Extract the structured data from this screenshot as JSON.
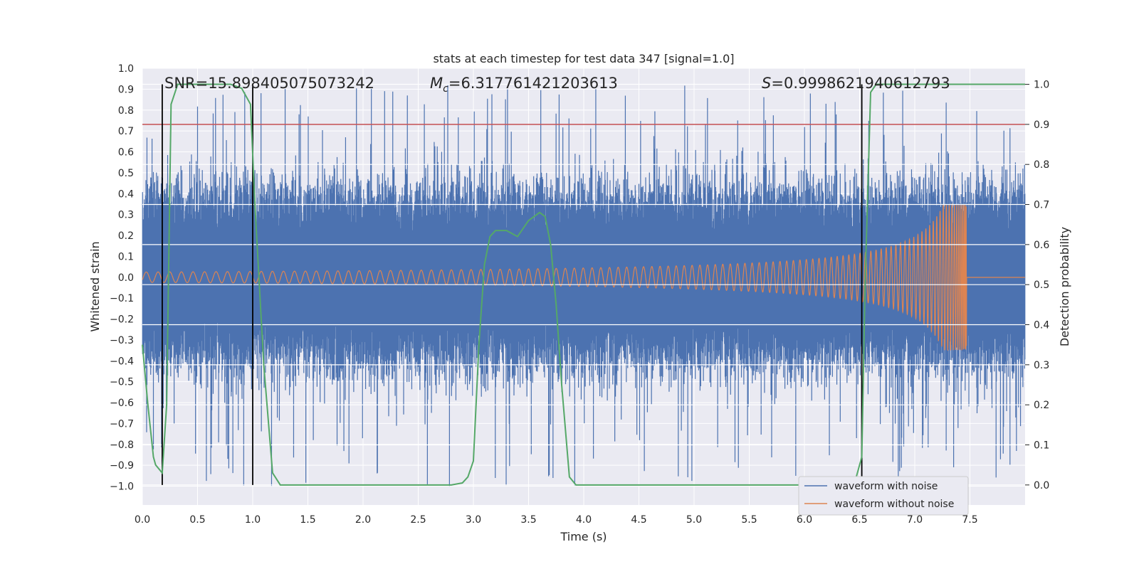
{
  "chart_data": {
    "type": "line",
    "title": "stats at each timestep for test data 347 [signal=1.0]",
    "xlabel": "Time (s)",
    "ylabel_left": "Whitened strain",
    "ylabel_right": "Detection probability",
    "xlim": [
      0.0,
      8.0
    ],
    "ylim_left": [
      -1.09,
      1.0
    ],
    "ylim_right": [
      -0.05,
      1.04
    ],
    "x_ticks": [
      "0.0",
      "0.5",
      "1.0",
      "1.5",
      "2.0",
      "2.5",
      "3.0",
      "3.5",
      "4.0",
      "4.5",
      "5.0",
      "5.5",
      "6.0",
      "6.5",
      "7.0",
      "7.5"
    ],
    "y_left_ticks": [
      "1.0",
      "0.9",
      "0.8",
      "0.7",
      "0.6",
      "0.5",
      "0.4",
      "0.3",
      "0.2",
      "0.1",
      "0.0",
      "−0.1",
      "−0.2",
      "−0.3",
      "−0.4",
      "−0.5",
      "−0.6",
      "−0.7",
      "−0.8",
      "−0.9",
      "−1.0"
    ],
    "y_right_ticks": [
      "1.0",
      "0.9",
      "0.8",
      "0.7",
      "0.6",
      "0.5",
      "0.4",
      "0.3",
      "0.2",
      "0.1",
      "0.0"
    ],
    "annotations": {
      "snr_prefix": "SNR=",
      "snr": "15.898405075073242",
      "mc_symbol": "M",
      "mc_sub": "c",
      "mc": "6.317761421203613",
      "s_symbol": "S",
      "s": "0.9998621940612793"
    },
    "threshold_probability": 0.9,
    "detection_markers_s": [
      0.18,
      1.0,
      6.52
    ],
    "series": [
      {
        "name": "waveform with noise",
        "color": "#4c72b0",
        "axis": "left",
        "description_stats": {
          "typical_amplitude": 0.38,
          "max_peak": 0.92,
          "min_trough": -1.0
        }
      },
      {
        "name": "waveform without noise",
        "color": "#dd8452",
        "axis": "left",
        "chirp_start_amplitude": 0.025,
        "merger_time_s": 7.47,
        "merger_amplitude": 0.35,
        "post_merger_amplitude": 0.005
      },
      {
        "name": "detection probability",
        "color": "#55a868",
        "axis": "right",
        "x": [
          0.0,
          0.05,
          0.1,
          0.12,
          0.18,
          0.22,
          0.26,
          0.32,
          0.5,
          0.8,
          0.9,
          0.98,
          1.02,
          1.1,
          1.18,
          1.25,
          1.4,
          2.0,
          2.5,
          2.8,
          2.9,
          2.95,
          3.0,
          3.05,
          3.1,
          3.15,
          3.2,
          3.3,
          3.4,
          3.5,
          3.6,
          3.65,
          3.7,
          3.75,
          3.8,
          3.87,
          3.93,
          4.0,
          5.0,
          6.0,
          6.45,
          6.52,
          6.55,
          6.6,
          6.65,
          6.8,
          8.0
        ],
        "y": [
          0.35,
          0.2,
          0.07,
          0.05,
          0.03,
          0.2,
          0.95,
          1.0,
          1.0,
          1.0,
          0.99,
          0.95,
          0.7,
          0.3,
          0.03,
          0.0,
          0.0,
          0.0,
          0.0,
          0.0,
          0.005,
          0.02,
          0.06,
          0.35,
          0.55,
          0.62,
          0.635,
          0.635,
          0.62,
          0.66,
          0.68,
          0.67,
          0.6,
          0.45,
          0.25,
          0.02,
          0.0,
          0.0,
          0.0,
          0.0,
          0.0,
          0.07,
          0.5,
          0.98,
          1.0,
          1.0,
          1.0
        ]
      }
    ],
    "legend": {
      "placement": "lower-right",
      "entries": [
        {
          "label": "waveform with noise",
          "color": "#4c72b0"
        },
        {
          "label": "waveform without noise",
          "color": "#dd8452"
        }
      ]
    },
    "colors": {
      "plot_bg": "#eaeaf2",
      "grid": "#ffffff",
      "threshold": "#c44e52",
      "marker": "#000000"
    }
  }
}
